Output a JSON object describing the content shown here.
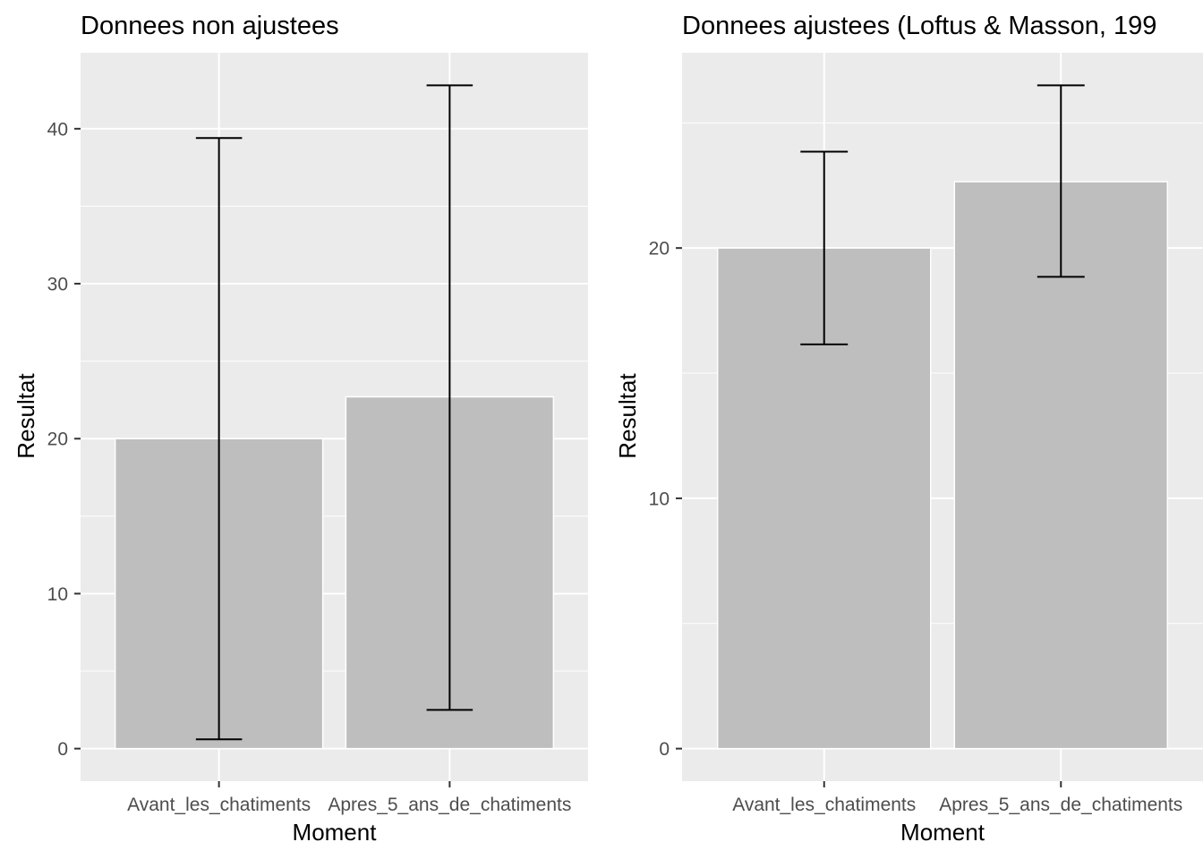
{
  "chart_data": [
    {
      "type": "bar",
      "title": "Donnees non ajustees",
      "xlabel": "Moment",
      "ylabel": "Resultat",
      "categories": [
        "Avant_les_chatiments",
        "Apres_5_ans_de_chatiments"
      ],
      "values": [
        20.0,
        22.7
      ],
      "error_low": [
        0.6,
        2.5
      ],
      "error_high": [
        39.4,
        42.8
      ],
      "ylim": [
        -2.1,
        44.9
      ],
      "yticks": [
        0,
        10,
        20,
        30,
        40
      ],
      "grid": true
    },
    {
      "type": "bar",
      "title": "Donnees ajustees (Loftus & Masson, 199",
      "xlabel": "Moment",
      "ylabel": "Resultat",
      "categories": [
        "Avant_les_chatiments",
        "Apres_5_ans_de_chatiments"
      ],
      "values": [
        20.0,
        22.65
      ],
      "error_low": [
        16.15,
        18.85
      ],
      "error_high": [
        23.85,
        26.5
      ],
      "ylim": [
        -1.3,
        27.8
      ],
      "yticks": [
        0,
        10,
        20
      ],
      "grid": true
    }
  ],
  "colors": {
    "panel_background": "#ebebeb",
    "grid": "#ffffff",
    "bar_fill": "#bebebe",
    "bar_stroke": "#ffffff",
    "error_bar": "#000000",
    "tick_text": "#4d4d4d"
  }
}
